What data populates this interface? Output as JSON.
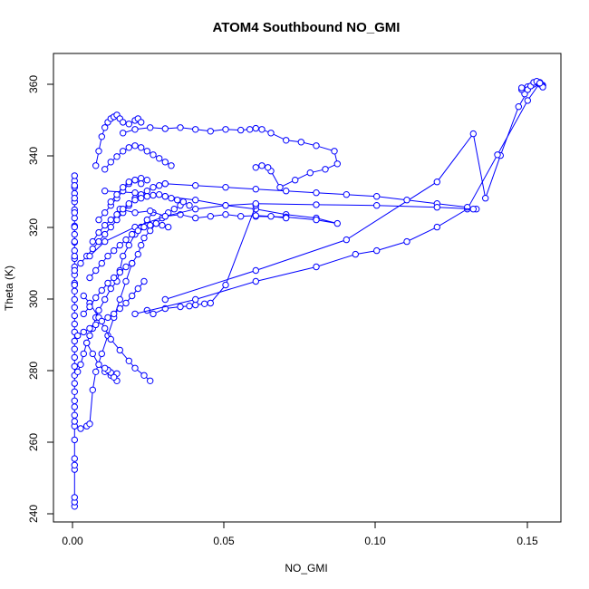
{
  "chart_data": {
    "type": "line",
    "title": "ATOM4 Southbound NO_GMI",
    "xlabel": "NO_GMI",
    "ylabel": "Theta (K)",
    "xlim": [
      -0.007,
      0.161
    ],
    "ylim": [
      238.5,
      368
    ],
    "xticks": [
      0.0,
      0.05,
      0.1,
      0.15
    ],
    "xtick_labels": [
      "0.00",
      "0.05",
      "0.10",
      "0.15"
    ],
    "yticks": [
      240,
      260,
      280,
      300,
      320,
      340,
      360
    ],
    "ytick_labels": [
      "240",
      "260",
      "280",
      "300",
      "320",
      "340",
      "360"
    ],
    "grid": false,
    "marker": "open-circle",
    "colors": {
      "series": "#0000ff",
      "axis": "#000000",
      "background": "#ffffff"
    },
    "series": [
      {
        "name": "",
        "x": [
          0.0,
          0.0,
          0.0,
          0.0,
          0.0,
          0.0,
          0.0,
          0.0,
          0.0,
          0.0,
          0.0,
          0.0,
          0.0,
          0.0,
          0.0,
          0.0,
          0.0,
          0.0,
          0.0,
          0.0,
          0.0,
          0.0,
          0.0,
          0.0,
          0.0,
          0.0,
          0.0,
          0.0,
          0.0,
          0.0,
          0.0,
          0.0,
          0.0,
          0.0,
          0.0,
          0.0,
          0.0,
          0.0,
          0.0,
          0.0,
          0.0,
          0.0,
          0.0,
          0.0,
          0.0,
          0.0,
          0.0,
          0.0
        ],
        "y": [
          242.8,
          244.0,
          245.3,
          253.0,
          254.2,
          256.0,
          261.2,
          265.0,
          266.3,
          268.0,
          270.3,
          272.0,
          274.5,
          276.8,
          279.0,
          281.5,
          284.0,
          286.3,
          288.5,
          291.0,
          293.2,
          295.5,
          297.8,
          300.0,
          302.3,
          304.5,
          306.8,
          309.0,
          311.3,
          313.5,
          315.8,
          318.0,
          320.3,
          322.5,
          324.8,
          327.0,
          329.3,
          331.0,
          332.8,
          334.2,
          331.5,
          328.0,
          324.0,
          320.0,
          316.0,
          312.0,
          308.0,
          304.0
        ]
      },
      {
        "name": "",
        "x": [
          0.002,
          0.004,
          0.005,
          0.006,
          0.007,
          0.009,
          0.011,
          0.013,
          0.015,
          0.017,
          0.019,
          0.021,
          0.022,
          0.023,
          0.025,
          0.027,
          0.029,
          0.031,
          0.033,
          0.035
        ],
        "y": [
          264.3,
          265.0,
          265.6,
          275.0,
          280.0,
          285.0,
          290.0,
          295.0,
          300.0,
          305.0,
          310.0,
          312.5,
          315.0,
          317.0,
          319.0,
          321.0,
          322.5,
          324.0,
          325.0,
          326.0
        ]
      },
      {
        "name": "",
        "x": [
          0.001,
          0.002,
          0.003,
          0.004,
          0.005,
          0.006,
          0.007,
          0.008,
          0.01,
          0.012,
          0.014,
          0.015,
          0.016,
          0.018,
          0.02,
          0.022,
          0.024,
          0.026
        ],
        "y": [
          280.0,
          282.0,
          285.0,
          288.0,
          290.0,
          292.0,
          295.0,
          297.0,
          300.0,
          303.0,
          305.0,
          308.0,
          312.0,
          315.0,
          318.0,
          320.0,
          322.0,
          324.0
        ]
      },
      {
        "name": "",
        "x": [
          0.007,
          0.008,
          0.009,
          0.01,
          0.011,
          0.012,
          0.013,
          0.014,
          0.015,
          0.016,
          0.018,
          0.02,
          0.021,
          0.022
        ],
        "y": [
          337.0,
          341.0,
          345.0,
          347.5,
          349.0,
          350.0,
          350.5,
          351.0,
          350.0,
          349.0,
          348.5,
          349.5,
          350.0,
          349.0
        ]
      },
      {
        "name": "",
        "x": [
          0.016,
          0.02,
          0.025,
          0.03,
          0.035,
          0.04,
          0.045,
          0.05,
          0.055,
          0.058,
          0.06,
          0.062,
          0.065,
          0.07,
          0.075,
          0.08,
          0.086,
          0.087,
          0.083,
          0.078,
          0.073,
          0.068,
          0.065,
          0.064,
          0.062,
          0.06
        ],
        "y": [
          346.0,
          347.0,
          347.5,
          347.2,
          347.5,
          347.0,
          346.5,
          347.0,
          346.8,
          347.0,
          347.3,
          347.0,
          346.0,
          344.0,
          343.5,
          342.5,
          341.0,
          337.5,
          336.0,
          335.0,
          333.0,
          331.0,
          335.5,
          336.5,
          337.0,
          336.5
        ]
      },
      {
        "name": "",
        "x": [
          0.01,
          0.02,
          0.03,
          0.04,
          0.05,
          0.06,
          0.07,
          0.08,
          0.087,
          0.08,
          0.07,
          0.06
        ],
        "y": [
          330.0,
          329.5,
          328.5,
          327.5,
          326.0,
          325.0,
          323.5,
          322.5,
          321.0,
          322.0,
          322.8,
          323.0
        ]
      },
      {
        "name": "",
        "x": [
          0.015,
          0.02,
          0.025,
          0.03,
          0.035,
          0.04,
          0.045,
          0.05,
          0.055,
          0.06,
          0.065,
          0.07
        ],
        "y": [
          325.0,
          324.0,
          324.5,
          323.0,
          323.5,
          322.5,
          323.0,
          323.5,
          323.0,
          323.2,
          323.0,
          322.5
        ]
      },
      {
        "name": "",
        "x": [
          0.024,
          0.026,
          0.03,
          0.035,
          0.038,
          0.04,
          0.043,
          0.045,
          0.05,
          0.06
        ],
        "y": [
          297.0,
          296.0,
          297.5,
          298.0,
          298.2,
          298.5,
          298.8,
          299.0,
          304.0,
          326.0
        ]
      },
      {
        "name": "",
        "x": [
          0.03,
          0.06,
          0.09,
          0.12,
          0.132,
          0.136,
          0.141,
          0.147,
          0.151,
          0.155,
          0.154,
          0.152,
          0.15,
          0.149,
          0.148
        ],
        "y": [
          300.0,
          308.0,
          316.5,
          332.5,
          345.8,
          328.0,
          339.8,
          353.3,
          359.0,
          359.2,
          360.0,
          359.5,
          358.8,
          356.8,
          358.0
        ]
      },
      {
        "name": "",
        "x": [
          0.148,
          0.15,
          0.151,
          0.152,
          0.153,
          0.154,
          0.155,
          0.155,
          0.154,
          0.15,
          0.14,
          0.13,
          0.12,
          0.11,
          0.1,
          0.093,
          0.08,
          0.06,
          0.04,
          0.02
        ],
        "y": [
          358.5,
          358.0,
          359.0,
          360.0,
          360.3,
          359.5,
          359.0,
          358.7,
          359.8,
          355.0,
          340.0,
          325.0,
          320.0,
          316.0,
          313.5,
          312.5,
          309.0,
          305.0,
          300.0,
          296.0
        ]
      },
      {
        "name": "",
        "x": [
          0.003,
          0.005,
          0.008,
          0.01,
          0.012,
          0.015,
          0.018,
          0.02,
          0.023,
          0.025
        ],
        "y": [
          301.0,
          299.0,
          295.0,
          292.0,
          289.0,
          286.0,
          283.0,
          281.0,
          279.0,
          277.5
        ]
      },
      {
        "name": "",
        "x": [
          0.004,
          0.006,
          0.008,
          0.01,
          0.012,
          0.014,
          0.014,
          0.013,
          0.012,
          0.011,
          0.01
        ],
        "y": [
          288.0,
          285.0,
          282.0,
          280.0,
          279.0,
          279.5,
          277.5,
          278.5,
          279.8,
          280.5,
          281.0
        ]
      },
      {
        "name": "",
        "x": [
          0.002,
          0.004,
          0.006,
          0.008,
          0.01,
          0.012,
          0.014,
          0.016,
          0.018,
          0.02,
          0.022,
          0.024,
          0.026,
          0.028,
          0.03
        ],
        "y": [
          310.0,
          312.0,
          314.0,
          316.0,
          318.0,
          320.0,
          322.0,
          324.0,
          326.0,
          328.0,
          329.0,
          330.0,
          331.0,
          331.5,
          332.0
        ]
      },
      {
        "name": "",
        "x": [
          0.03,
          0.04,
          0.05,
          0.06,
          0.07,
          0.08,
          0.09,
          0.1,
          0.11,
          0.12,
          0.13,
          0.133
        ],
        "y": [
          332.0,
          331.5,
          331.0,
          330.5,
          330.0,
          329.5,
          329.0,
          328.5,
          327.5,
          326.5,
          325.5,
          325.0
        ]
      },
      {
        "name": "",
        "x": [
          0.132,
          0.12,
          0.1,
          0.08,
          0.06,
          0.05,
          0.04,
          0.03,
          0.02,
          0.01,
          0.005
        ],
        "y": [
          325.0,
          325.5,
          326.0,
          326.2,
          326.5,
          326.0,
          325.0,
          323.0,
          320.0,
          316.0,
          312.0
        ]
      },
      {
        "name": "",
        "x": [
          0.006,
          0.008,
          0.01,
          0.012,
          0.014,
          0.016,
          0.018,
          0.02,
          0.022,
          0.024,
          0.026,
          0.028,
          0.03,
          0.032,
          0.034,
          0.036,
          0.038
        ],
        "y": [
          316.0,
          318.5,
          320.5,
          322.0,
          323.5,
          325.0,
          326.5,
          327.5,
          328.0,
          328.5,
          328.8,
          329.0,
          328.5,
          328.0,
          327.5,
          327.0,
          326.0
        ]
      },
      {
        "name": "",
        "x": [
          0.001,
          0.003,
          0.005,
          0.007,
          0.009,
          0.011,
          0.013,
          0.015,
          0.017,
          0.019,
          0.021,
          0.023
        ],
        "y": [
          290.0,
          291.0,
          292.0,
          293.0,
          294.0,
          295.0,
          296.0,
          297.5,
          299.0,
          301.0,
          303.0,
          305.0
        ]
      },
      {
        "name": "",
        "x": [
          0.005,
          0.007,
          0.009,
          0.011,
          0.013,
          0.015,
          0.017,
          0.019,
          0.021,
          0.023,
          0.025,
          0.027,
          0.029,
          0.031
        ],
        "y": [
          306.0,
          308.0,
          310.0,
          312.0,
          313.5,
          315.0,
          316.5,
          318.0,
          319.0,
          320.0,
          320.5,
          321.0,
          320.5,
          320.0
        ]
      },
      {
        "name": "",
        "x": [
          0.01,
          0.012,
          0.014,
          0.016,
          0.018,
          0.02,
          0.022,
          0.024,
          0.026,
          0.028,
          0.03,
          0.032
        ],
        "y": [
          336.0,
          338.0,
          339.5,
          341.0,
          342.0,
          342.5,
          342.0,
          341.0,
          340.0,
          339.0,
          338.0,
          337.0
        ]
      },
      {
        "name": "",
        "x": [
          0.008,
          0.01,
          0.012,
          0.014,
          0.016,
          0.018,
          0.02,
          0.022,
          0.024
        ],
        "y": [
          322.0,
          324.0,
          326.0,
          328.0,
          330.0,
          332.0,
          333.0,
          333.5,
          333.0
        ]
      },
      {
        "name": "",
        "x": [
          0.003,
          0.005,
          0.007,
          0.009,
          0.011,
          0.013,
          0.015,
          0.017,
          0.019
        ],
        "y": [
          296.0,
          298.0,
          300.5,
          302.5,
          304.5,
          306.0,
          307.5,
          309.0,
          310.0
        ]
      },
      {
        "name": "",
        "x": [
          0.012,
          0.014,
          0.016,
          0.018,
          0.02,
          0.022
        ],
        "y": [
          327.0,
          329.0,
          331.0,
          332.5,
          333.0,
          332.0
        ]
      }
    ]
  }
}
